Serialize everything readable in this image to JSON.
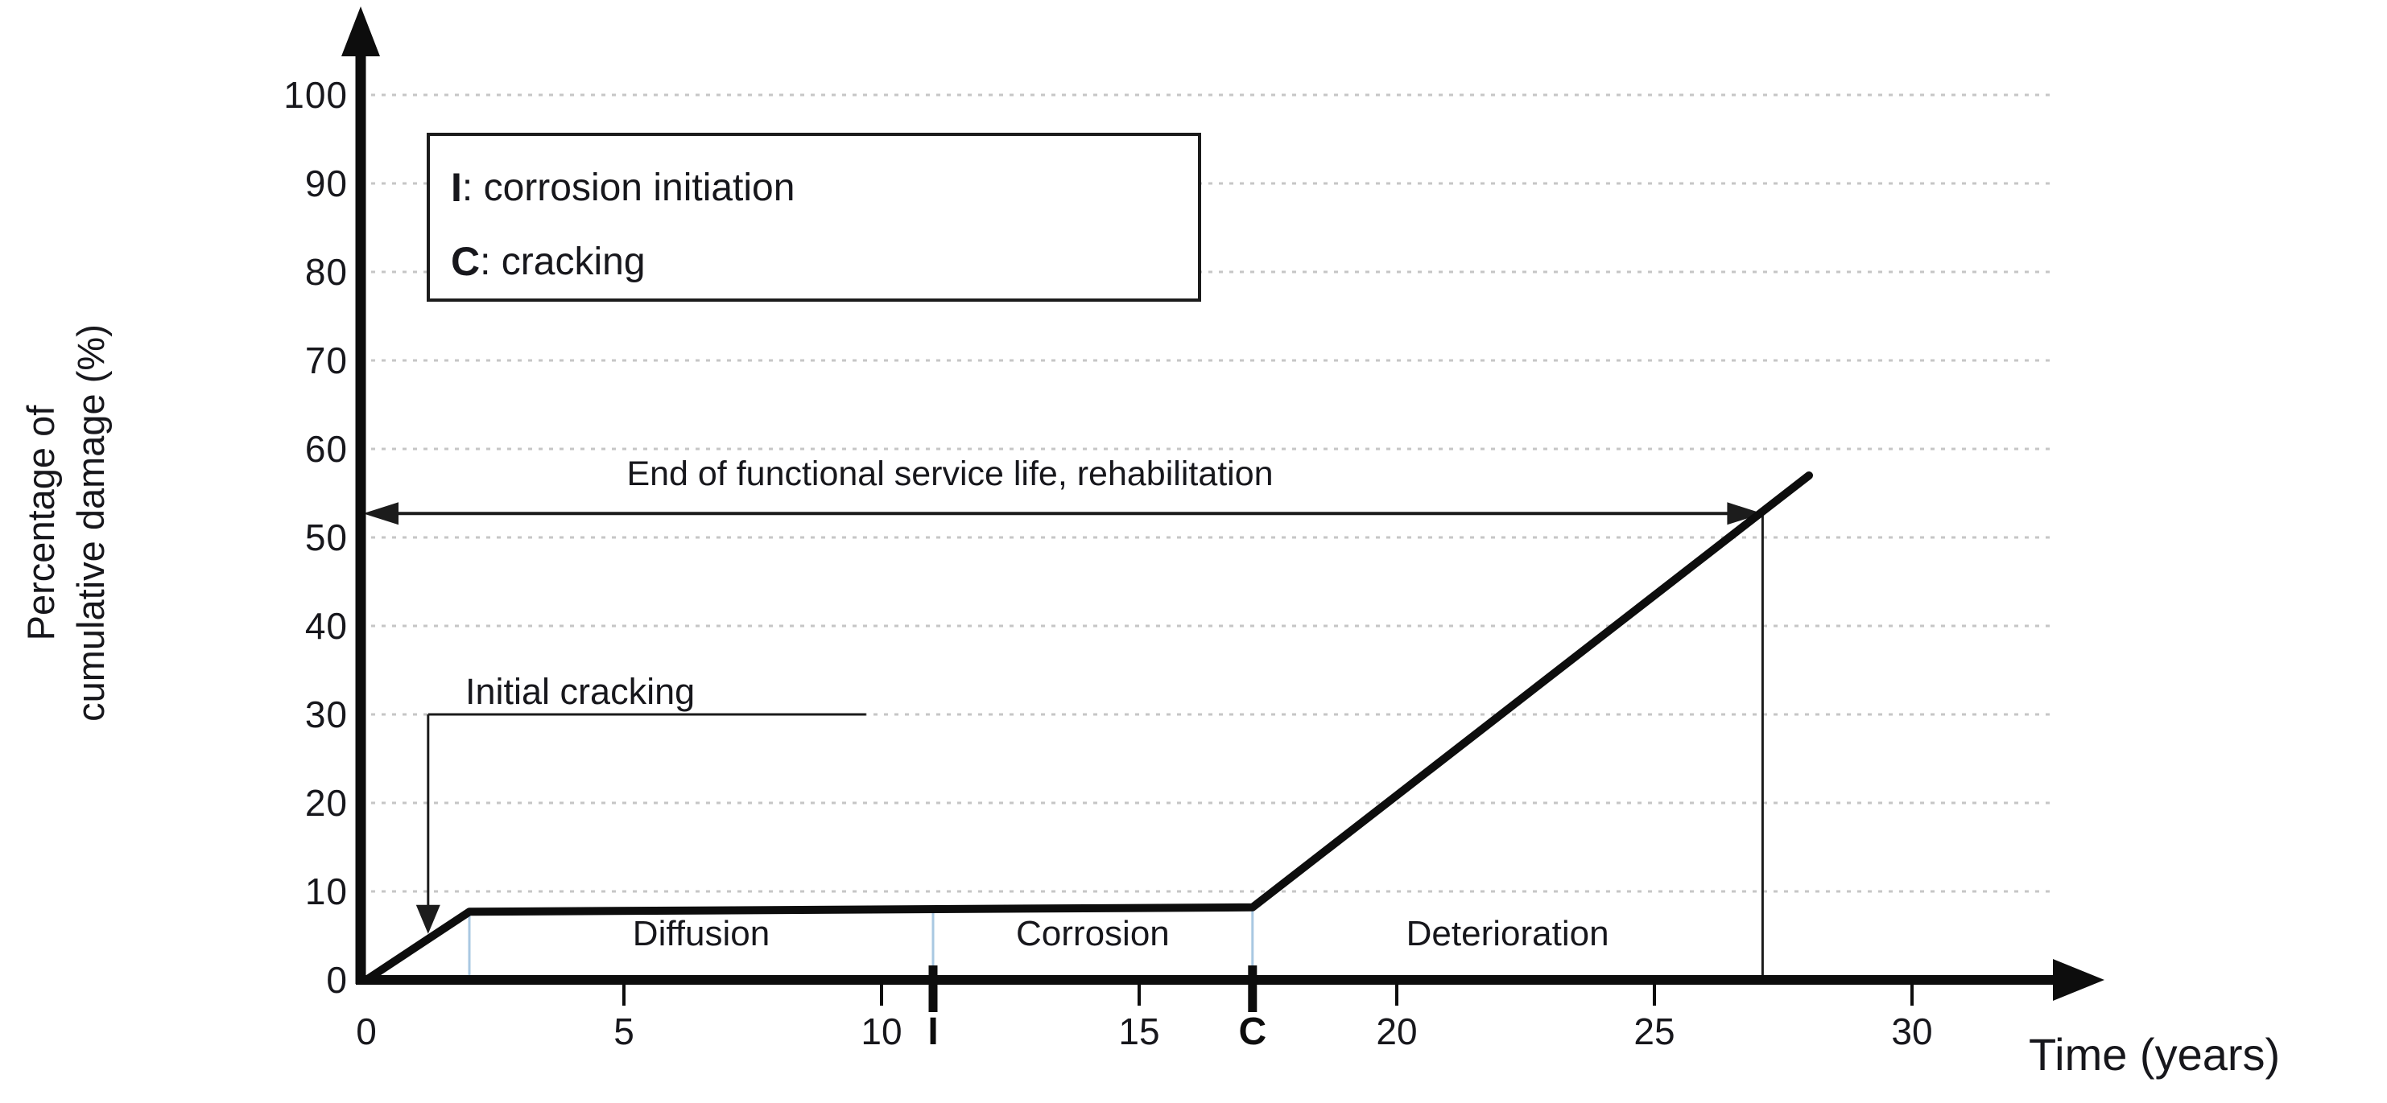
{
  "page": {
    "background": "#ffffff"
  },
  "colors": {
    "axis": "#0d0d0d",
    "curve": "#0d0d0d",
    "grid": "#c6c6c6",
    "phase_separator": "#a9c8e2",
    "annotation_line": "#1c1c1c",
    "text": "#17171c"
  },
  "chart_data": {
    "type": "line",
    "title": "",
    "xlabel": "Time (years)",
    "ylabel_lines": [
      "Percentage of",
      "cumulative damage (%)"
    ],
    "xlim": [
      0,
      33
    ],
    "ylim": [
      0,
      105
    ],
    "x_ticks": [
      0,
      5,
      10,
      15,
      20,
      25,
      30
    ],
    "y_ticks": [
      0,
      10,
      20,
      30,
      40,
      50,
      60,
      70,
      80,
      90,
      100
    ],
    "grid": "horizontal-dotted",
    "series": [
      {
        "name": "Percentage of cumulative damage",
        "points": [
          [
            0,
            0
          ],
          [
            2,
            7.7
          ],
          [
            17.2,
            8.2
          ],
          [
            28,
            57
          ]
        ]
      }
    ],
    "event_markers": [
      {
        "label": "I",
        "x": 11,
        "meaning": "corrosion initiation"
      },
      {
        "label": "C",
        "x": 17.2,
        "meaning": "cracking"
      }
    ],
    "phase_separators_x": [
      2,
      11,
      17.2
    ],
    "phase_regions": [
      {
        "label": "Diffusion",
        "x_start": 2,
        "x_end": 11
      },
      {
        "label": "Corrosion",
        "x_start": 11,
        "x_end": 17.2
      },
      {
        "label": "Deterioration",
        "x_start": 17.2,
        "x_end": 27.1
      }
    ],
    "legend": {
      "items": [
        {
          "key": "I",
          "desc": ": corrosion initiation"
        },
        {
          "key": "C",
          "desc": ": cracking"
        }
      ]
    },
    "annotations": {
      "service_life": {
        "text": "End of functional service life, rehabilitation",
        "arrow_from_x": 0,
        "arrow_to_x": 27.1,
        "arrow_y_pct": 52.7,
        "drop_line_x": 27.1
      },
      "initial_cracking": {
        "text": "Initial cracking",
        "leader_y_pct": 30,
        "leader_x_end": 9.7,
        "target": [
          1.2,
          5.2
        ]
      }
    }
  }
}
